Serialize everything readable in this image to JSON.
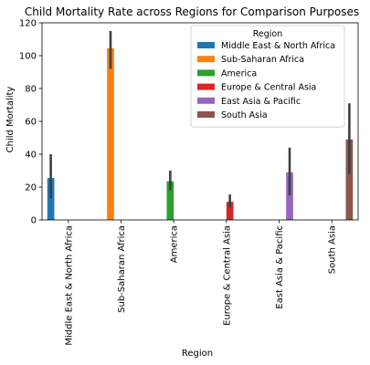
{
  "chart_data": {
    "type": "bar",
    "title": "Child Mortality Rate across Regions for Comparison Purposes",
    "xlabel": "Region",
    "ylabel": "Child Mortality",
    "ylim": [
      0,
      120
    ],
    "yticks": [
      0,
      20,
      40,
      60,
      80,
      100,
      120
    ],
    "categories": [
      "Middle East & North Africa",
      "Sub-Saharan Africa",
      "America",
      "Europe & Central Asia",
      "East Asia & Pacific",
      "South Asia"
    ],
    "legend": {
      "title": "Region",
      "placement": "top-right"
    },
    "grid": false,
    "series": [
      {
        "name": "Middle East & North Africa",
        "color": "#1f77b4",
        "values": [
          25.5,
          null,
          null,
          null,
          null,
          null
        ],
        "ci": [
          [
            13,
            40
          ],
          null,
          null,
          null,
          null,
          null
        ]
      },
      {
        "name": "Sub-Saharan Africa",
        "color": "#ff7f0e",
        "values": [
          null,
          104.5,
          null,
          null,
          null,
          null
        ],
        "ci": [
          null,
          [
            92,
            115
          ],
          null,
          null,
          null,
          null
        ]
      },
      {
        "name": "America",
        "color": "#2ca02c",
        "values": [
          null,
          null,
          23.5,
          null,
          null,
          null
        ],
        "ci": [
          null,
          null,
          [
            18,
            30
          ],
          null,
          null,
          null
        ]
      },
      {
        "name": "Europe & Central Asia",
        "color": "#d62728",
        "values": [
          null,
          null,
          null,
          11,
          null,
          null
        ],
        "ci": [
          null,
          null,
          null,
          [
            7.5,
            15.5
          ],
          null,
          null
        ]
      },
      {
        "name": "East Asia & Pacific",
        "color": "#9467bd",
        "values": [
          null,
          null,
          null,
          null,
          29,
          null
        ],
        "ci": [
          null,
          null,
          null,
          null,
          [
            15,
            44
          ],
          null
        ]
      },
      {
        "name": "South Asia",
        "color": "#8c564b",
        "values": [
          null,
          null,
          null,
          null,
          null,
          49
        ],
        "ci": [
          null,
          null,
          null,
          null,
          null,
          [
            28,
            71
          ]
        ]
      }
    ],
    "error_bar_color": "#404040"
  }
}
